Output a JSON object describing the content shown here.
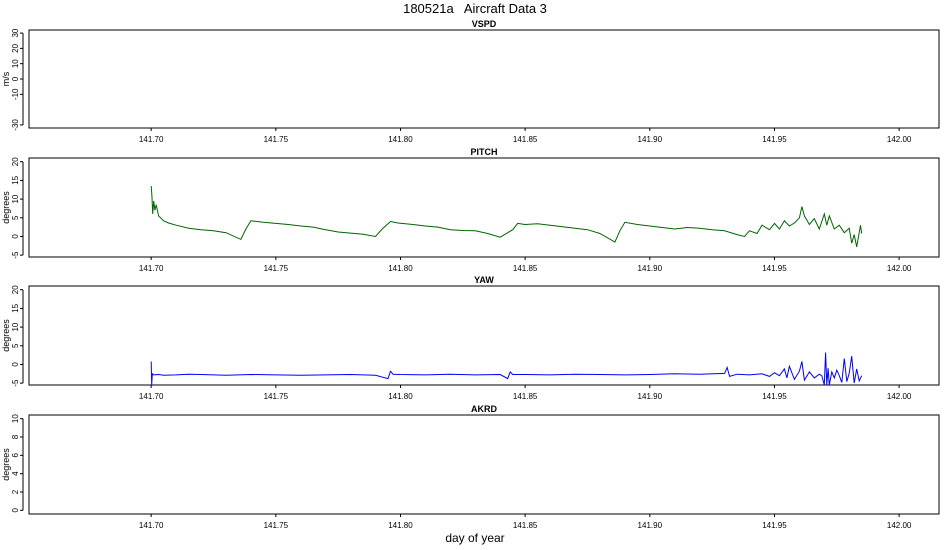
{
  "title": "180521a   Aircraft Data 3",
  "xlabel": "day of year",
  "chart_data": [
    {
      "type": "line",
      "title": "VSPD",
      "ylabel": "m/s",
      "xlim": [
        141.651,
        142.016
      ],
      "ylim": [
        -32,
        32
      ],
      "yticks": [
        -30,
        -10,
        0,
        10,
        20,
        30
      ],
      "xticks": [
        141.7,
        141.75,
        141.8,
        141.85,
        141.9,
        141.95,
        142.0
      ],
      "series": [
        {
          "color": "#000000",
          "x": [],
          "y": []
        }
      ]
    },
    {
      "type": "line",
      "title": "PITCH",
      "ylabel": "degrees",
      "xlim": [
        141.651,
        142.016
      ],
      "ylim": [
        -5.5,
        21
      ],
      "yticks": [
        -5,
        0,
        5,
        10,
        15,
        20
      ],
      "xticks": [
        141.7,
        141.75,
        141.8,
        141.85,
        141.9,
        141.95,
        142.0
      ],
      "series": [
        {
          "color": "#006400",
          "x": [
            141.7,
            141.7003,
            141.7006,
            141.701,
            141.7015,
            141.702,
            141.703,
            141.705,
            141.707,
            141.71,
            141.715,
            141.72,
            141.725,
            141.73,
            141.736,
            141.738,
            141.74,
            141.745,
            141.75,
            141.755,
            141.76,
            141.765,
            141.77,
            141.775,
            141.78,
            141.785,
            141.79,
            141.793,
            141.796,
            141.799,
            141.805,
            141.81,
            141.815,
            141.82,
            141.825,
            141.83,
            141.835,
            141.84,
            141.845,
            141.847,
            141.85,
            141.855,
            141.86,
            141.865,
            141.87,
            141.875,
            141.88,
            141.886,
            141.888,
            141.89,
            141.895,
            141.9,
            141.905,
            141.91,
            141.915,
            141.92,
            141.925,
            141.93,
            141.935,
            141.938,
            141.94,
            141.943,
            141.945,
            141.948,
            141.95,
            141.952,
            141.954,
            141.956,
            141.958,
            141.96,
            141.961,
            141.962,
            141.964,
            141.966,
            141.968,
            141.97,
            141.971,
            141.972,
            141.974,
            141.976,
            141.978,
            141.98,
            141.981,
            141.982,
            141.983,
            141.984,
            141.9845,
            141.985
          ],
          "y": [
            13.5,
            11.0,
            6.0,
            9.5,
            7.0,
            8.5,
            5.5,
            4.2,
            3.6,
            3.0,
            2.2,
            1.8,
            1.5,
            1.0,
            -0.8,
            2.0,
            4.2,
            3.8,
            3.5,
            3.2,
            2.8,
            2.5,
            1.8,
            1.2,
            0.9,
            0.6,
            0.0,
            2.2,
            4.0,
            3.6,
            3.2,
            2.8,
            2.5,
            1.8,
            1.6,
            1.5,
            0.8,
            -0.2,
            1.8,
            3.5,
            3.2,
            3.4,
            3.0,
            2.6,
            2.2,
            1.8,
            0.8,
            -1.5,
            1.5,
            3.8,
            3.2,
            2.8,
            2.4,
            2.0,
            2.4,
            2.2,
            1.8,
            1.5,
            0.5,
            0.0,
            1.5,
            0.8,
            3.0,
            1.8,
            3.5,
            2.0,
            4.2,
            2.8,
            3.6,
            5.0,
            8.0,
            5.5,
            3.2,
            4.8,
            2.0,
            6.0,
            3.0,
            5.5,
            2.0,
            3.0,
            1.0,
            2.2,
            -1.8,
            0.5,
            -2.8,
            1.0,
            3.0,
            0.8
          ]
        }
      ]
    },
    {
      "type": "line",
      "title": "YAW",
      "ylabel": "degrees",
      "xlim": [
        141.651,
        142.016
      ],
      "ylim": [
        -5.5,
        21
      ],
      "yticks": [
        -5,
        0,
        5,
        10,
        15,
        20
      ],
      "xticks": [
        141.7,
        141.75,
        141.8,
        141.85,
        141.9,
        141.95,
        142.0
      ],
      "series": [
        {
          "color": "#0000ff",
          "x": [
            141.7,
            141.7002,
            141.7004,
            141.7006,
            141.701,
            141.703,
            141.705,
            141.71,
            141.715,
            141.72,
            141.725,
            141.73,
            141.74,
            141.75,
            141.76,
            141.77,
            141.78,
            141.79,
            141.795,
            141.796,
            141.797,
            141.8,
            141.81,
            141.82,
            141.83,
            141.84,
            141.843,
            141.844,
            141.845,
            141.85,
            141.86,
            141.87,
            141.88,
            141.89,
            141.9,
            141.91,
            141.92,
            141.93,
            141.931,
            141.932,
            141.935,
            141.94,
            141.945,
            141.948,
            141.95,
            141.952,
            141.954,
            141.955,
            141.956,
            141.958,
            141.96,
            141.961,
            141.962,
            141.964,
            141.966,
            141.968,
            141.969,
            141.97,
            141.9705,
            141.971,
            141.9715,
            141.972,
            141.973,
            141.974,
            141.975,
            141.976,
            141.977,
            141.978,
            141.979,
            141.98,
            141.981,
            141.982,
            141.983,
            141.984,
            141.985
          ],
          "y": [
            0.8,
            -5.5,
            -3.0,
            -2.5,
            -2.8,
            -2.7,
            -2.9,
            -2.8,
            -2.6,
            -2.7,
            -2.8,
            -2.9,
            -2.7,
            -2.8,
            -2.9,
            -2.8,
            -2.7,
            -2.9,
            -3.8,
            -1.8,
            -2.6,
            -2.7,
            -2.8,
            -2.6,
            -2.8,
            -2.7,
            -3.8,
            -2.0,
            -2.7,
            -2.7,
            -2.8,
            -2.6,
            -2.7,
            -2.8,
            -2.7,
            -2.5,
            -2.6,
            -2.4,
            -0.8,
            -3.2,
            -2.6,
            -2.8,
            -2.5,
            -3.2,
            -2.2,
            -3.0,
            -1.2,
            -3.6,
            -0.5,
            -4.0,
            -1.8,
            0.8,
            -4.2,
            -2.0,
            -3.6,
            -2.6,
            -3.0,
            -5.5,
            3.2,
            -5.5,
            -1.0,
            -5.5,
            -2.0,
            -3.6,
            -1.5,
            -3.0,
            -4.8,
            1.6,
            -4.6,
            -2.4,
            2.2,
            -5.0,
            -1.2,
            -4.4,
            -3.0
          ]
        }
      ]
    },
    {
      "type": "line",
      "title": "AKRD",
      "ylabel": "degrees",
      "xlim": [
        141.651,
        142.016
      ],
      "ylim": [
        -0.4,
        10.4
      ],
      "yticks": [
        0,
        2,
        4,
        6,
        8,
        10
      ],
      "xticks": [
        141.7,
        141.75,
        141.8,
        141.85,
        141.9,
        141.95,
        142.0
      ],
      "series": [
        {
          "color": "#000000",
          "x": [],
          "y": []
        }
      ]
    }
  ]
}
